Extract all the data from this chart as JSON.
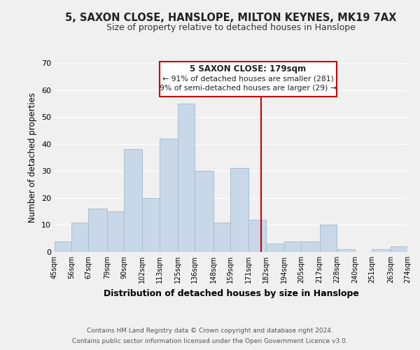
{
  "title": "5, SAXON CLOSE, HANSLOPE, MILTON KEYNES, MK19 7AX",
  "subtitle": "Size of property relative to detached houses in Hanslope",
  "xlabel": "Distribution of detached houses by size in Hanslope",
  "ylabel": "Number of detached properties",
  "bin_edges": [
    45,
    56,
    67,
    79,
    90,
    102,
    113,
    125,
    136,
    148,
    159,
    171,
    182,
    194,
    205,
    217,
    228,
    240,
    251,
    263,
    274
  ],
  "counts": [
    4,
    11,
    16,
    15,
    38,
    20,
    42,
    55,
    30,
    11,
    31,
    12,
    3,
    4,
    4,
    10,
    1,
    0,
    1,
    2
  ],
  "bar_color": "#c8d8e8",
  "bar_edge_color": "#a8bfcf",
  "reference_line_x": 179,
  "reference_line_color": "#cc0000",
  "annotation_box_line_color": "#cc0000",
  "annotation_title": "5 SAXON CLOSE: 179sqm",
  "annotation_line1": "← 91% of detached houses are smaller (281)",
  "annotation_line2": "9% of semi-detached houses are larger (29) →",
  "footer1": "Contains HM Land Registry data © Crown copyright and database right 2024.",
  "footer2": "Contains public sector information licensed under the Open Government Licence v3.0.",
  "tick_labels": [
    "45sqm",
    "56sqm",
    "67sqm",
    "79sqm",
    "90sqm",
    "102sqm",
    "113sqm",
    "125sqm",
    "136sqm",
    "148sqm",
    "159sqm",
    "171sqm",
    "182sqm",
    "194sqm",
    "205sqm",
    "217sqm",
    "228sqm",
    "240sqm",
    "251sqm",
    "263sqm",
    "274sqm"
  ],
  "ylim": [
    0,
    70
  ],
  "yticks": [
    0,
    10,
    20,
    30,
    40,
    50,
    60,
    70
  ],
  "background_color": "#f0f0f0",
  "grid_color": "#ffffff",
  "title_fontsize": 10.5,
  "subtitle_fontsize": 9.0
}
